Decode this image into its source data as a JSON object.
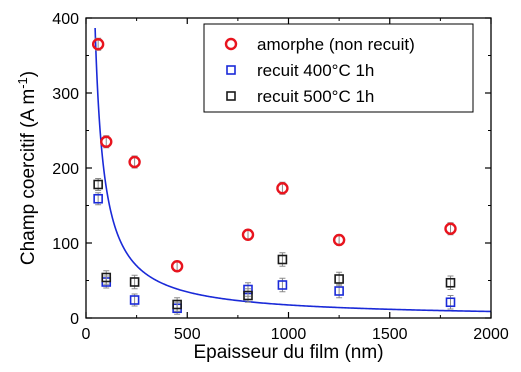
{
  "chart_data": {
    "type": "scatter",
    "xlabel": "Epaisseur du film (nm)",
    "ylabel_main": "Champ coercitif (A m",
    "ylabel_sup": "-1",
    "ylabel_close": ")",
    "xlim": [
      0,
      2000
    ],
    "ylim": [
      0,
      400
    ],
    "xticks": [
      0,
      500,
      1000,
      1500,
      2000
    ],
    "yticks": [
      0,
      100,
      200,
      300,
      400
    ],
    "legend_position": "top-right",
    "series": [
      {
        "name": "amorphe (non recuit)",
        "marker": "circle",
        "color": "#e8141e",
        "x": [
          60,
          100,
          240,
          450,
          800,
          970,
          1250,
          1800
        ],
        "y": [
          365,
          235,
          208,
          69,
          111,
          173,
          104,
          119
        ],
        "err": [
          8,
          8,
          8,
          7,
          7,
          8,
          7,
          8
        ]
      },
      {
        "name": "recuit 400°C 1h",
        "marker": "square",
        "color": "#1a2ad8",
        "x": [
          60,
          100,
          240,
          450,
          800,
          970,
          1250,
          1800
        ],
        "y": [
          159,
          48,
          24,
          13,
          38,
          44,
          36,
          21
        ],
        "err": [
          8,
          8,
          8,
          8,
          9,
          9,
          9,
          9
        ]
      },
      {
        "name": "recuit 500°C 1h",
        "marker": "square",
        "color": "#1a1a1a",
        "x": [
          60,
          100,
          240,
          450,
          800,
          970,
          1250,
          1800
        ],
        "y": [
          178,
          54,
          48,
          18,
          30,
          78,
          52,
          47
        ],
        "err": [
          8,
          9,
          9,
          9,
          9,
          9,
          9,
          9
        ]
      }
    ],
    "fit_curve": {
      "color": "#1a2ad8",
      "type": "inverse",
      "coefficient": 17400,
      "x_start": 45,
      "x_end": 2000
    }
  }
}
